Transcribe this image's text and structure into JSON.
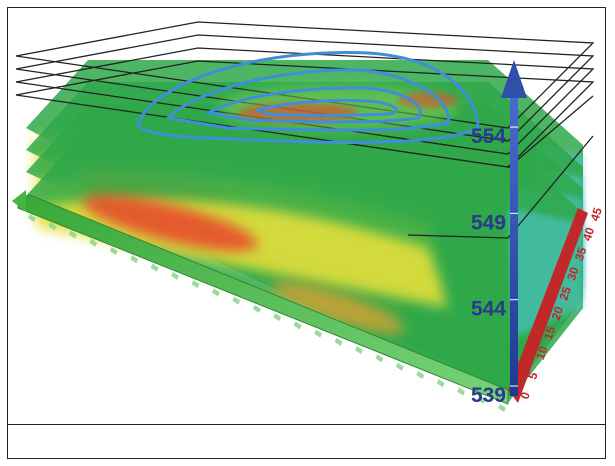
{
  "chart_data": {
    "type": "heatmap",
    "title": "",
    "xlabel": "",
    "ylabel": "",
    "zlabel": "",
    "z_ticks": [
      "539",
      "544",
      "549",
      "554"
    ],
    "z_range": [
      539,
      558
    ],
    "depth_ticks": [
      "0",
      "5",
      "10",
      "15",
      "20",
      "25",
      "30",
      "35",
      "40",
      "45"
    ],
    "layers": [
      {
        "level": 539,
        "render": "filled-surface",
        "peak": "high"
      },
      {
        "level": 541,
        "render": "filled-surface",
        "peak": "medium"
      },
      {
        "level": 543,
        "render": "filled-surface",
        "peak": "medium"
      },
      {
        "level": 545,
        "render": "filled-surface",
        "peak": "low"
      },
      {
        "level": 553,
        "render": "contour-outline",
        "peak": "high"
      }
    ],
    "grid_slices": 4,
    "colors": {
      "frame": "#222222",
      "z_axis": "#2f4fa8",
      "z_label": "#2a3a8c",
      "depth_axis": "#c0282a",
      "x_axis": "#44b444",
      "contour": "#3f8fd8",
      "low": "#2fa84a",
      "mid": "#e3df3a",
      "high": "#e8442a"
    }
  }
}
